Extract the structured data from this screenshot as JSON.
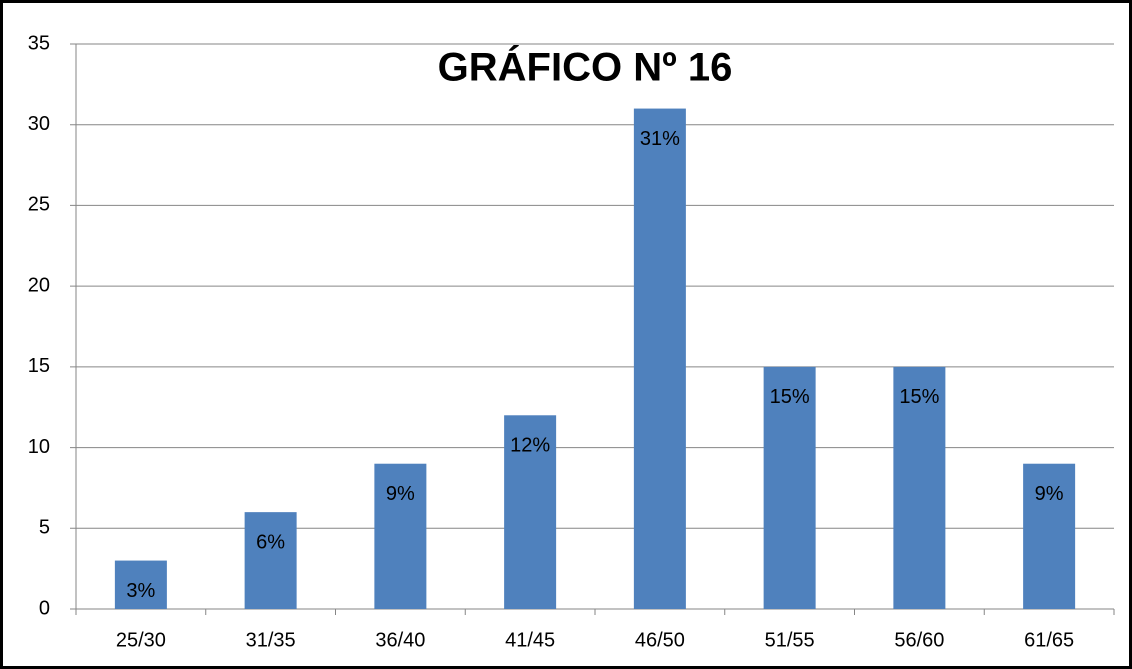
{
  "chart_data": {
    "type": "bar",
    "title": "GRÁFICO Nº 16",
    "categories": [
      "25/30",
      "31/35",
      "36/40",
      "41/45",
      "46/50",
      "51/55",
      "56/60",
      "61/65"
    ],
    "values": [
      3,
      6,
      9,
      12,
      31,
      15,
      15,
      9
    ],
    "value_labels": [
      "3%",
      "6%",
      "9%",
      "12%",
      "31%",
      "15%",
      "15%",
      "9%"
    ],
    "color": "#4f81bd",
    "ylim": [
      0,
      35
    ],
    "yticks": [
      0,
      5,
      10,
      15,
      20,
      25,
      30,
      35
    ],
    "grid": true
  }
}
